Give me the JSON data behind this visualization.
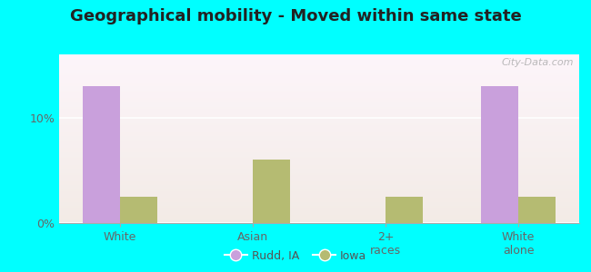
{
  "title": "Geographical mobility - Moved within same state",
  "categories": [
    "White",
    "Asian",
    "2+\nraces",
    "White\nalone"
  ],
  "rudd_values": [
    13.0,
    0.0,
    0.0,
    13.0
  ],
  "iowa_values": [
    2.5,
    6.0,
    2.5,
    2.5
  ],
  "rudd_color": "#c9a0dc",
  "iowa_color": "#b5bb72",
  "ylim": [
    0,
    16
  ],
  "yticks": [
    0,
    10
  ],
  "ytick_labels": [
    "0%",
    "10%"
  ],
  "bar_width": 0.28,
  "background_color": "#00ffff",
  "legend_rudd": "Rudd, IA",
  "legend_iowa": "Iowa",
  "watermark": "City-Data.com"
}
